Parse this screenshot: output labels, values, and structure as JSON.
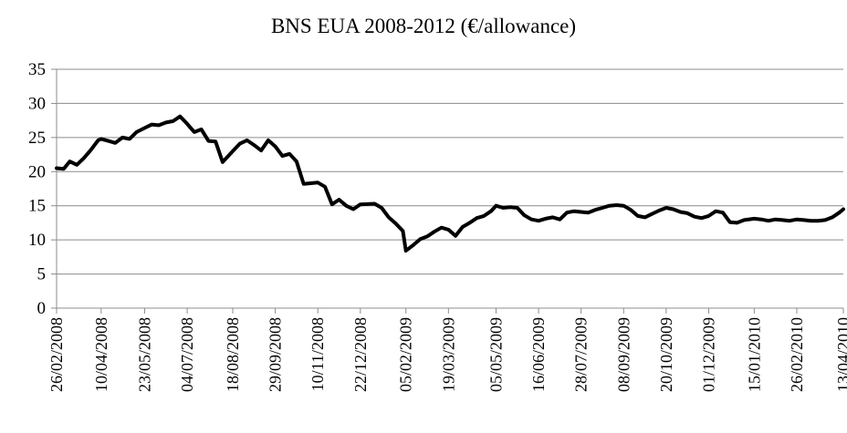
{
  "chart_data": {
    "type": "line",
    "title": "BNS EUA 2008-2012 (€/allowance)",
    "xlabel": "",
    "ylabel": "",
    "ylim": [
      0,
      35
    ],
    "yticks": [
      0,
      5,
      10,
      15,
      20,
      25,
      30,
      35
    ],
    "grid": true,
    "x_ticks": [
      "26/02/2008",
      "10/04/2008",
      "23/05/2008",
      "04/07/2008",
      "18/08/2008",
      "29/09/2008",
      "10/11/2008",
      "22/12/2008",
      "05/02/2009",
      "19/03/2009",
      "05/05/2009",
      "16/06/2009",
      "28/07/2009",
      "08/09/2009",
      "20/10/2009",
      "01/12/2009",
      "15/01/2010",
      "26/02/2010",
      "13/04/2010"
    ],
    "series": [
      {
        "color": "#000000",
        "x": [
          "26/02/2008",
          "04/03/2008",
          "10/03/2008",
          "17/03/2008",
          "24/03/2008",
          "31/03/2008",
          "07/04/2008",
          "10/04/2008",
          "17/04/2008",
          "24/04/2008",
          "01/05/2008",
          "08/05/2008",
          "15/05/2008",
          "23/05/2008",
          "30/05/2008",
          "06/06/2008",
          "13/06/2008",
          "20/06/2008",
          "27/06/2008",
          "04/07/2008",
          "11/07/2008",
          "18/07/2008",
          "25/07/2008",
          "01/08/2008",
          "08/08/2008",
          "18/08/2008",
          "25/08/2008",
          "01/09/2008",
          "08/09/2008",
          "15/09/2008",
          "22/09/2008",
          "29/09/2008",
          "06/10/2008",
          "13/10/2008",
          "20/10/2008",
          "27/10/2008",
          "03/11/2008",
          "10/11/2008",
          "17/11/2008",
          "24/11/2008",
          "01/12/2008",
          "08/12/2008",
          "15/12/2008",
          "22/12/2008",
          "05/01/2009",
          "12/01/2009",
          "19/01/2009",
          "26/01/2009",
          "02/02/2009",
          "05/02/2009",
          "12/02/2009",
          "19/02/2009",
          "26/02/2009",
          "05/03/2009",
          "12/03/2009",
          "19/03/2009",
          "26/03/2009",
          "02/04/2009",
          "09/04/2009",
          "16/04/2009",
          "23/04/2009",
          "30/04/2009",
          "05/05/2009",
          "12/05/2009",
          "19/05/2009",
          "26/05/2009",
          "02/06/2009",
          "09/06/2009",
          "16/06/2009",
          "23/06/2009",
          "30/06/2009",
          "07/07/2009",
          "14/07/2009",
          "21/07/2009",
          "28/07/2009",
          "04/08/2009",
          "11/08/2009",
          "18/08/2009",
          "25/08/2009",
          "01/09/2009",
          "08/09/2009",
          "15/09/2009",
          "22/09/2009",
          "29/09/2009",
          "06/10/2009",
          "13/10/2009",
          "20/10/2009",
          "27/10/2009",
          "03/11/2009",
          "10/11/2009",
          "17/11/2009",
          "24/11/2009",
          "01/12/2009",
          "08/12/2009",
          "15/12/2009",
          "22/12/2009",
          "29/12/2009",
          "05/01/2010",
          "15/01/2010",
          "22/01/2010",
          "29/01/2010",
          "05/02/2010",
          "12/02/2010",
          "19/02/2010",
          "26/02/2010",
          "05/03/2010",
          "12/03/2010",
          "19/03/2010",
          "26/03/2010",
          "02/04/2010",
          "09/04/2010",
          "13/04/2010"
        ],
        "values": [
          20.5,
          20.4,
          21.5,
          21.0,
          22.0,
          23.2,
          24.6,
          24.8,
          24.5,
          24.2,
          25.0,
          24.8,
          25.8,
          26.4,
          26.9,
          26.8,
          27.2,
          27.4,
          28.1,
          27.0,
          25.8,
          26.2,
          24.5,
          24.4,
          21.4,
          23.0,
          24.1,
          24.6,
          23.9,
          23.1,
          24.6,
          23.7,
          22.3,
          22.6,
          21.5,
          18.2,
          18.3,
          18.4,
          17.8,
          15.2,
          15.9,
          15.0,
          14.5,
          15.2,
          15.3,
          14.7,
          13.3,
          12.4,
          11.3,
          8.4,
          9.2,
          10.1,
          10.5,
          11.2,
          11.8,
          11.5,
          10.6,
          11.9,
          12.5,
          13.2,
          13.5,
          14.2,
          15.0,
          14.7,
          14.8,
          14.7,
          13.6,
          13.0,
          12.8,
          13.1,
          13.3,
          13.0,
          14.0,
          14.2,
          14.1,
          14.0,
          14.4,
          14.7,
          15.0,
          15.1,
          15.0,
          14.4,
          13.5,
          13.3,
          13.8,
          14.3,
          14.7,
          14.5,
          14.1,
          13.9,
          13.4,
          13.2,
          13.5,
          14.2,
          14.0,
          12.6,
          12.5,
          12.9,
          13.1,
          13.0,
          12.8,
          13.0,
          12.9,
          12.8,
          13.0,
          12.9,
          12.8,
          12.8,
          12.9,
          13.3,
          14.0,
          14.5
        ]
      }
    ]
  }
}
